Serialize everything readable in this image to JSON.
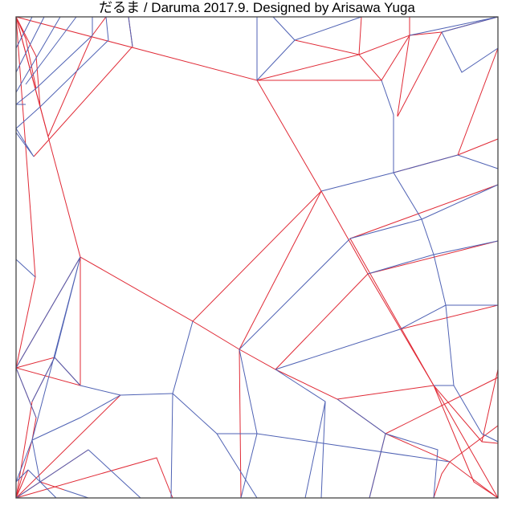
{
  "title": "だるま / Daruma  2017.9. Designed by Arisawa Yuga",
  "colors": {
    "mountain": "#e02a36",
    "valley": "#4f62b4",
    "border": "#444444",
    "background": "#ffffff"
  }
}
